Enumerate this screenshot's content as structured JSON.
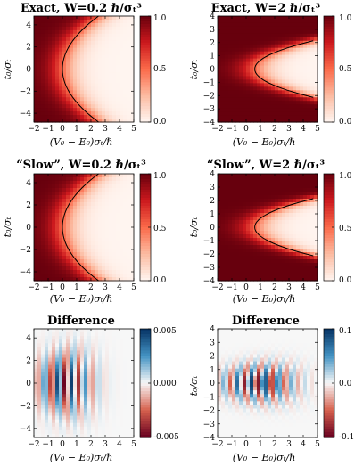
{
  "figure": {
    "panels": [
      {
        "id": "p1",
        "title": "Exact, W=0.2 ℏ/σₜ³",
        "xlabel": "(V₀ − E₀)σₜ/ℏ",
        "ylabel": "t₀/σₜ",
        "colorbar_ticks": [
          "1.0",
          "0.5",
          "0.0"
        ]
      },
      {
        "id": "p2",
        "title": "Exact, W=2 ℏ/σₜ³",
        "xlabel": "(V₀ − E₀)σₜ/ℏ",
        "ylabel": "t₀/σₜ",
        "colorbar_ticks": [
          "1.0",
          "0.5",
          "0.0"
        ]
      },
      {
        "id": "p3",
        "title": "“Slow”, W=0.2 ℏ/σₜ³",
        "xlabel": "(V₀ − E₀)σₜ/ℏ",
        "ylabel": "t₀/σₜ",
        "colorbar_ticks": [
          "1.0",
          "0.5",
          "0.0"
        ]
      },
      {
        "id": "p4",
        "title": "“Slow”, W=2 ℏ/σₜ³",
        "xlabel": "(V₀ − E₀)σₜ/ℏ",
        "ylabel": "t₀/σₜ",
        "colorbar_ticks": [
          "1.0",
          "0.5",
          "0.0"
        ]
      },
      {
        "id": "p5",
        "title": "Difference",
        "xlabel": "(V₀ − E₀)σₜ/ℏ",
        "ylabel": "",
        "colorbar_ticks": [
          "0.005",
          "0.000",
          "-0.005"
        ]
      },
      {
        "id": "p6",
        "title": "Difference",
        "xlabel": "(V₀ − E₀)σₜ/ℏ",
        "ylabel": "t₀/σₜ",
        "colorbar_ticks": [
          "0.1",
          "0.0",
          "-0.1"
        ]
      }
    ]
  },
  "chart_data": [
    {
      "type": "heatmap",
      "panel": "p1",
      "title": "Exact, W=0.2 ℏ/σₜ³",
      "xlabel": "(V₀ − E₀)σₜ/ℏ",
      "ylabel": "t₀/σₜ",
      "xlim": [
        -2,
        5
      ],
      "ylim": [
        -4.8,
        4.8
      ],
      "x_ticks": [
        -2,
        -1,
        0,
        1,
        2,
        3,
        4,
        5
      ],
      "y_ticks": [
        -4,
        -2,
        0,
        2,
        4
      ],
      "colorbar": {
        "min": 0.0,
        "max": 1.0,
        "ticks": [
          0.0,
          0.5,
          1.0
        ],
        "colormap": "reds"
      },
      "contour_level": 0.5,
      "boundary": {
        "vertex_x": 0.0,
        "curvature": 0.11
      },
      "edge_width": 0.6
    },
    {
      "type": "heatmap",
      "panel": "p2",
      "title": "Exact, W=2 ℏ/σₜ³",
      "xlabel": "(V₀ − E₀)σₜ/ℏ",
      "ylabel": "t₀/σₜ",
      "xlim": [
        -2,
        5
      ],
      "ylim": [
        -4,
        4
      ],
      "x_ticks": [
        -2,
        -1,
        0,
        1,
        2,
        3,
        4,
        5
      ],
      "y_ticks": [
        -4,
        -3,
        -2,
        -1,
        0,
        1,
        2,
        3,
        4
      ],
      "colorbar": {
        "min": 0.0,
        "max": 1.0,
        "ticks": [
          0.0,
          0.5,
          1.0
        ],
        "colormap": "reds"
      },
      "contour_level": 0.5,
      "boundary": {
        "vertex_x": 0.6,
        "curvature": 0.9
      },
      "edge_width": 0.7
    },
    {
      "type": "heatmap",
      "panel": "p3",
      "title": "“Slow”, W=0.2 ℏ/σₜ³",
      "xlabel": "(V₀ − E₀)σₜ/ℏ",
      "ylabel": "t₀/σₜ",
      "xlim": [
        -2,
        5
      ],
      "ylim": [
        -4.8,
        4.8
      ],
      "x_ticks": [
        -2,
        -1,
        0,
        1,
        2,
        3,
        4,
        5
      ],
      "y_ticks": [
        -4,
        -2,
        0,
        2,
        4
      ],
      "colorbar": {
        "min": 0.0,
        "max": 1.0,
        "ticks": [
          0.0,
          0.5,
          1.0
        ],
        "colormap": "reds"
      },
      "contour_level": 0.5,
      "boundary": {
        "vertex_x": 0.0,
        "curvature": 0.11
      },
      "edge_width": 0.6
    },
    {
      "type": "heatmap",
      "panel": "p4",
      "title": "“Slow”, W=2 ℏ/σₜ³",
      "xlabel": "(V₀ − E₀)σₜ/ℏ",
      "ylabel": "t₀/σₜ",
      "xlim": [
        -2,
        5
      ],
      "ylim": [
        -4,
        4
      ],
      "x_ticks": [
        -2,
        -1,
        0,
        1,
        2,
        3,
        4,
        5
      ],
      "y_ticks": [
        -4,
        -3,
        -2,
        -1,
        0,
        1,
        2,
        3,
        4
      ],
      "colorbar": {
        "min": 0.0,
        "max": 1.0,
        "ticks": [
          0.0,
          0.5,
          1.0
        ],
        "colormap": "reds"
      },
      "contour_level": 0.5,
      "boundary": {
        "vertex_x": 0.6,
        "curvature": 0.9
      },
      "edge_width": 0.7
    },
    {
      "type": "heatmap",
      "panel": "p5",
      "title": "Difference",
      "xlabel": "(V₀ − E₀)σₜ/ℏ",
      "ylabel": "",
      "xlim": [
        -2,
        5
      ],
      "ylim": [
        -4.8,
        4.8
      ],
      "x_ticks": [
        -2,
        -1,
        0,
        1,
        2,
        3,
        4,
        5
      ],
      "y_ticks": [
        -4,
        -2,
        0,
        2,
        4
      ],
      "colorbar": {
        "min": -0.005,
        "max": 0.005,
        "ticks": [
          -0.005,
          0.0,
          0.005
        ],
        "colormap": "red-white-blue"
      },
      "fringes": {
        "center_x": 0.15,
        "period": 0.95,
        "decay": 0.55,
        "t_width": 1.6,
        "curvature": 0.11
      },
      "contour_level": null
    },
    {
      "type": "heatmap",
      "panel": "p6",
      "title": "Difference",
      "xlabel": "(V₀ − E₀)σₜ/ℏ",
      "ylabel": "t₀/σₜ",
      "xlim": [
        -2,
        5
      ],
      "ylim": [
        -4,
        4
      ],
      "x_ticks": [
        -2,
        -1,
        0,
        1,
        2,
        3,
        4,
        5
      ],
      "y_ticks": [
        -4,
        -3,
        -2,
        -1,
        0,
        1,
        2,
        3,
        4
      ],
      "colorbar": {
        "min": -0.1,
        "max": 0.1,
        "ticks": [
          -0.1,
          0.0,
          0.1
        ],
        "colormap": "red-white-blue"
      },
      "fringes": {
        "center_x": 0.8,
        "period": 0.95,
        "decay": 0.42,
        "t_width": 0.8,
        "curvature": 0.9
      },
      "contour_level": null
    }
  ]
}
